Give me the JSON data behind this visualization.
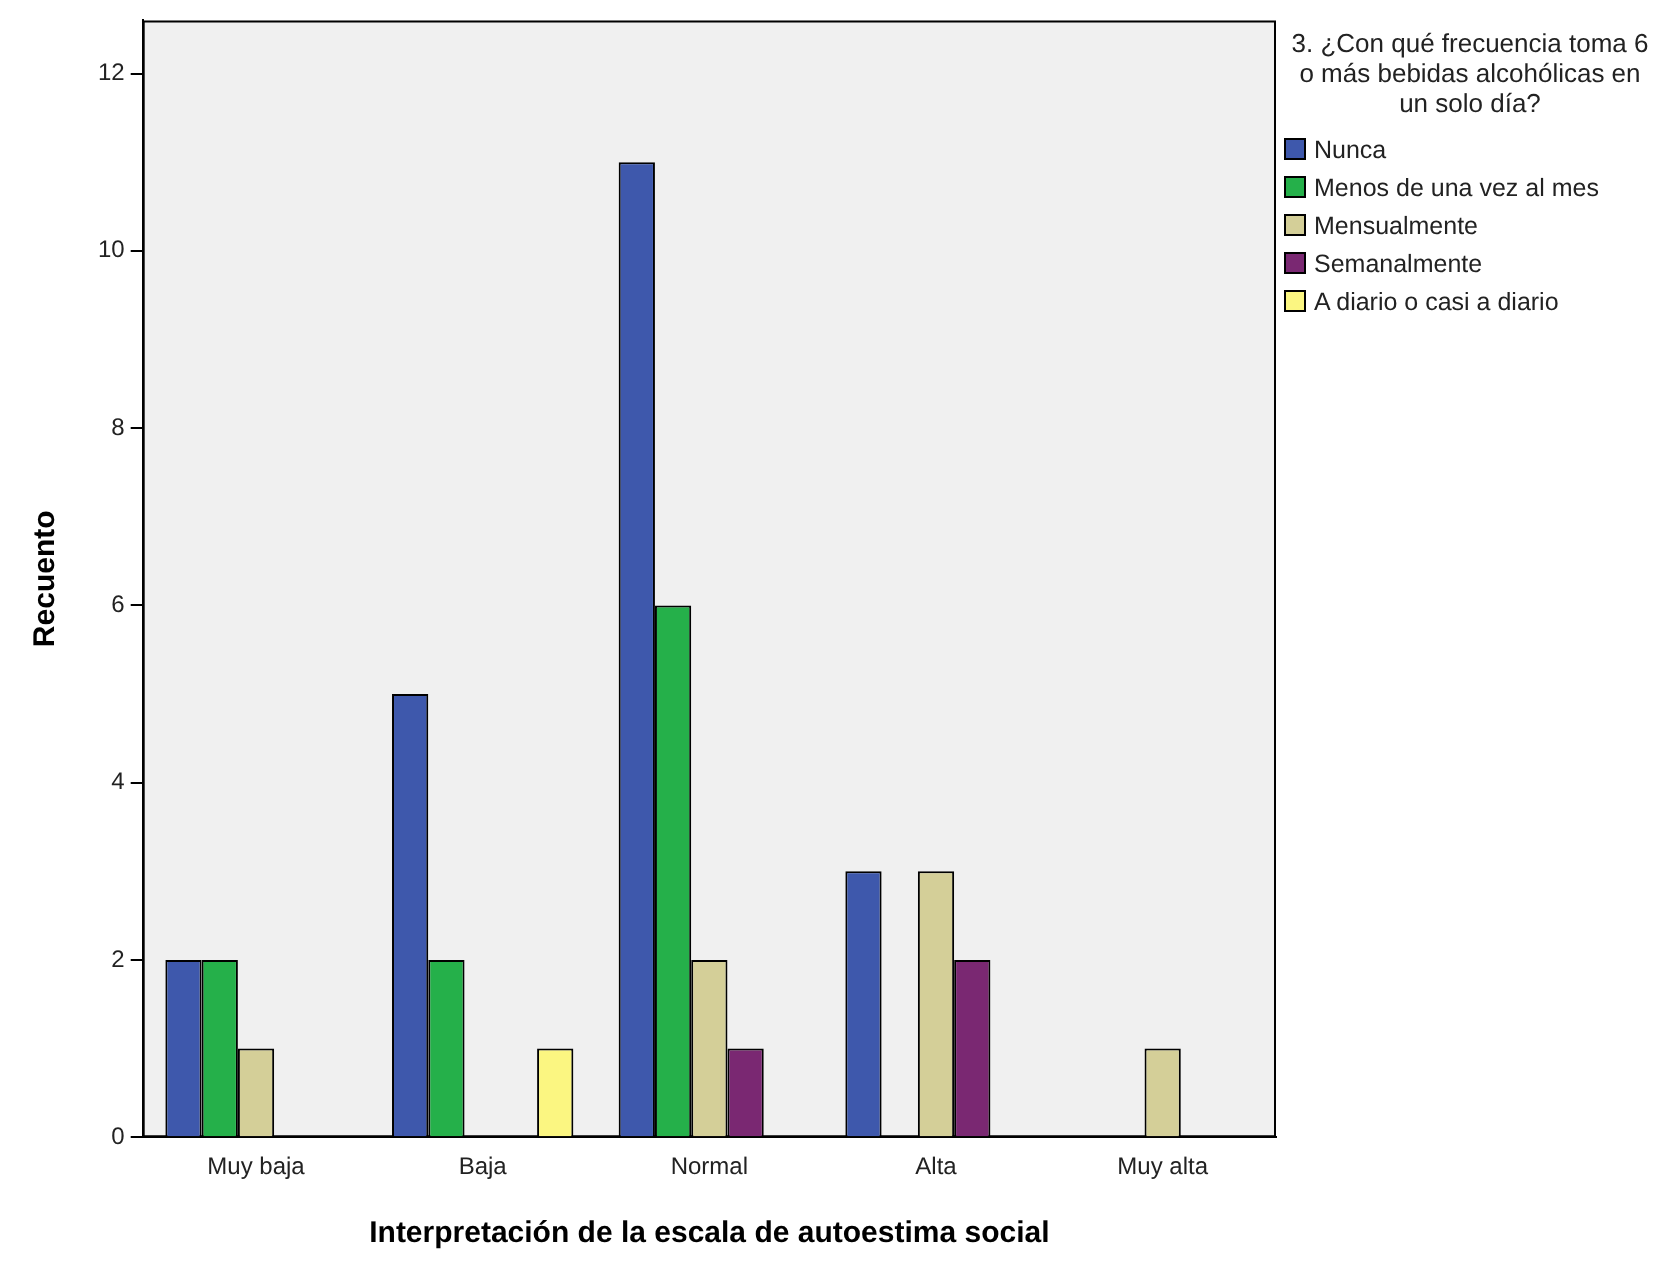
{
  "chart_data": {
    "type": "bar",
    "xlabel": "Interpretación de la escala de autoestima social",
    "ylabel": "Recuento",
    "legend_title": "3. ¿Con qué frecuencia toma 6 o más bebidas alcohólicas en un solo día?",
    "legend": "right",
    "grid": false,
    "categories": [
      "Muy baja",
      "Baja",
      "Normal",
      "Alta",
      "Muy alta"
    ],
    "ylim": [
      0,
      12.6
    ],
    "yticks": [
      0,
      2,
      4,
      6,
      8,
      10,
      12
    ],
    "series": [
      {
        "name": "Nunca",
        "color": "#3e58ac",
        "values": [
          2,
          5,
          11,
          3,
          null
        ]
      },
      {
        "name": "Menos de una vez al mes",
        "color": "#25b04a",
        "values": [
          2,
          2,
          6,
          null,
          null
        ]
      },
      {
        "name": "Mensualmente",
        "color": "#d4cf98",
        "values": [
          1,
          null,
          2,
          3,
          1
        ]
      },
      {
        "name": "Semanalmente",
        "color": "#7a2872",
        "values": [
          null,
          null,
          1,
          2,
          null
        ]
      },
      {
        "name": "A diario o casi a diario",
        "color": "#fbf681",
        "values": [
          null,
          1,
          null,
          null,
          null
        ]
      }
    ]
  }
}
